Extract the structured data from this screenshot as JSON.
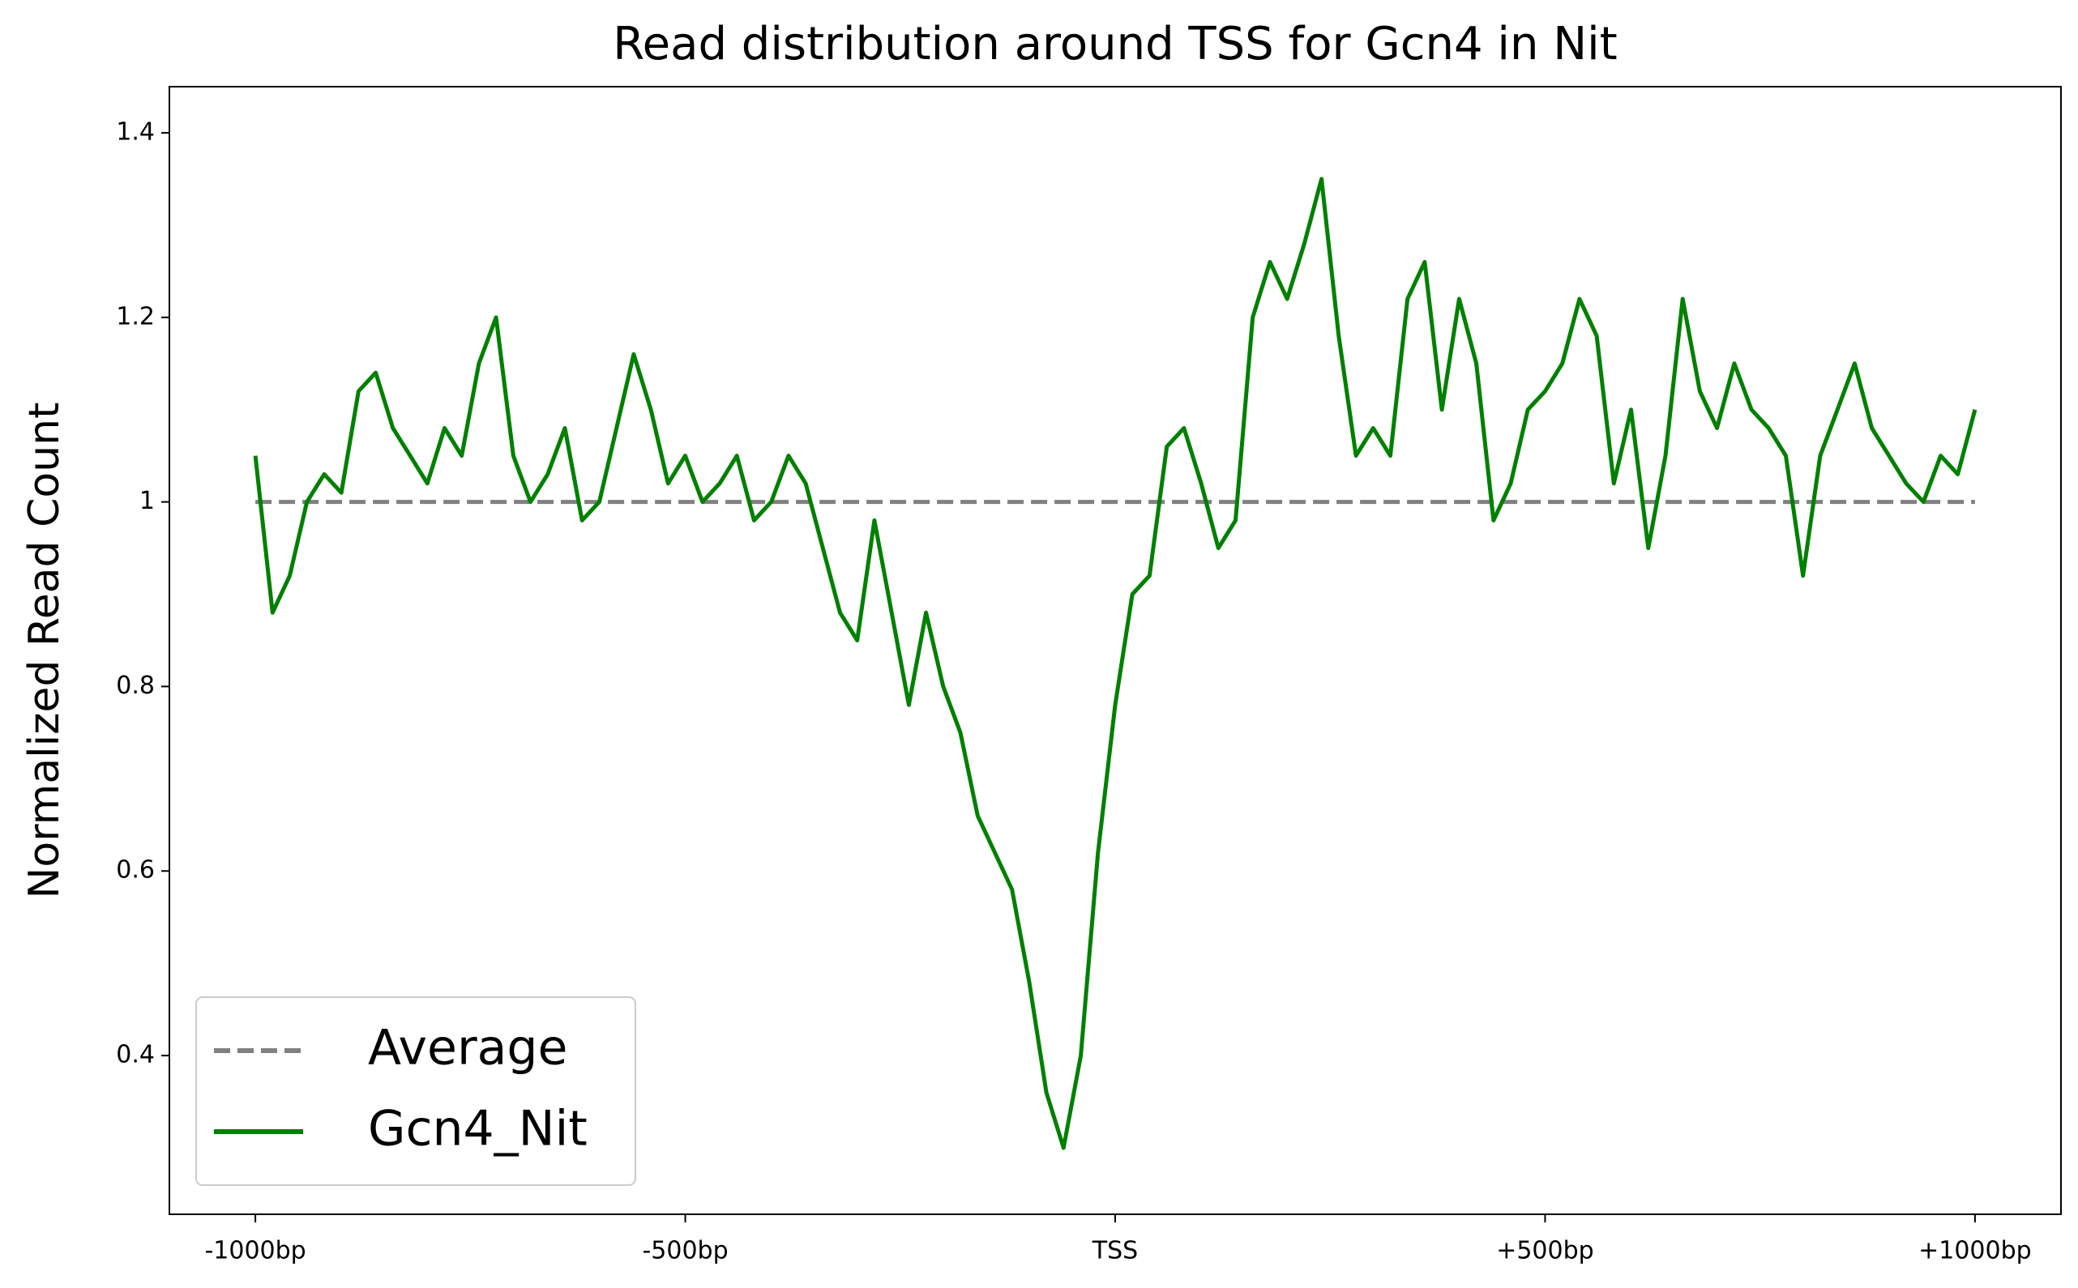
{
  "chart_data": {
    "type": "line",
    "title": "Read distribution around TSS for Gcn4 in Nit",
    "ylabel": "Normalized Read Count",
    "xlim": [
      -1100,
      1100
    ],
    "ylim": [
      0.228,
      1.45
    ],
    "xticks": [
      {
        "value": -1000,
        "label": "-1000bp"
      },
      {
        "value": -500,
        "label": "-500bp"
      },
      {
        "value": 0,
        "label": "TSS"
      },
      {
        "value": 500,
        "label": "+500bp"
      },
      {
        "value": 1000,
        "label": "+1000bp"
      }
    ],
    "yticks": [
      0.4,
      0.6,
      0.8,
      1.0,
      1.2,
      1.4
    ],
    "legend": "lower left",
    "series": [
      {
        "name": "Average",
        "color": "#808080",
        "linestyle": "dashed",
        "x": [
          -1000,
          1000
        ],
        "values": [
          1.0,
          1.0
        ]
      },
      {
        "name": "Gcn4_Nit",
        "color": "#008000",
        "linestyle": "solid",
        "x": [
          -1000,
          -980,
          -960,
          -940,
          -920,
          -900,
          -880,
          -860,
          -840,
          -820,
          -800,
          -780,
          -760,
          -740,
          -720,
          -700,
          -680,
          -660,
          -640,
          -620,
          -600,
          -580,
          -560,
          -540,
          -520,
          -500,
          -480,
          -460,
          -440,
          -420,
          -400,
          -380,
          -360,
          -340,
          -320,
          -300,
          -280,
          -260,
          -240,
          -220,
          -200,
          -180,
          -160,
          -140,
          -120,
          -100,
          -80,
          -60,
          -40,
          -20,
          0,
          20,
          40,
          60,
          80,
          100,
          120,
          140,
          160,
          180,
          200,
          220,
          240,
          260,
          280,
          300,
          320,
          340,
          360,
          380,
          400,
          420,
          440,
          460,
          480,
          500,
          520,
          540,
          560,
          580,
          600,
          620,
          640,
          660,
          680,
          700,
          720,
          740,
          760,
          780,
          800,
          820,
          840,
          860,
          880,
          900,
          920,
          940,
          960,
          980,
          1000
        ],
        "values": [
          1.05,
          0.88,
          0.92,
          1.0,
          1.03,
          1.01,
          1.12,
          1.14,
          1.08,
          1.05,
          1.02,
          1.08,
          1.05,
          1.15,
          1.2,
          1.05,
          1.0,
          1.03,
          1.08,
          0.98,
          1.0,
          1.08,
          1.16,
          1.1,
          1.02,
          1.05,
          1.0,
          1.02,
          1.05,
          0.98,
          1.0,
          1.05,
          1.02,
          0.95,
          0.88,
          0.85,
          0.98,
          0.88,
          0.78,
          0.88,
          0.8,
          0.75,
          0.66,
          0.62,
          0.58,
          0.48,
          0.36,
          0.3,
          0.4,
          0.62,
          0.78,
          0.9,
          0.92,
          1.06,
          1.08,
          1.02,
          0.95,
          0.98,
          1.2,
          1.26,
          1.22,
          1.28,
          1.35,
          1.18,
          1.05,
          1.08,
          1.05,
          1.22,
          1.26,
          1.1,
          1.22,
          1.15,
          0.98,
          1.02,
          1.1,
          1.12,
          1.15,
          1.22,
          1.18,
          1.02,
          1.1,
          0.95,
          1.05,
          1.22,
          1.12,
          1.08,
          1.15,
          1.1,
          1.08,
          1.05,
          0.92,
          1.05,
          1.1,
          1.15,
          1.08,
          1.05,
          1.02,
          1.0,
          1.05,
          1.03,
          1.1
        ]
      }
    ]
  }
}
